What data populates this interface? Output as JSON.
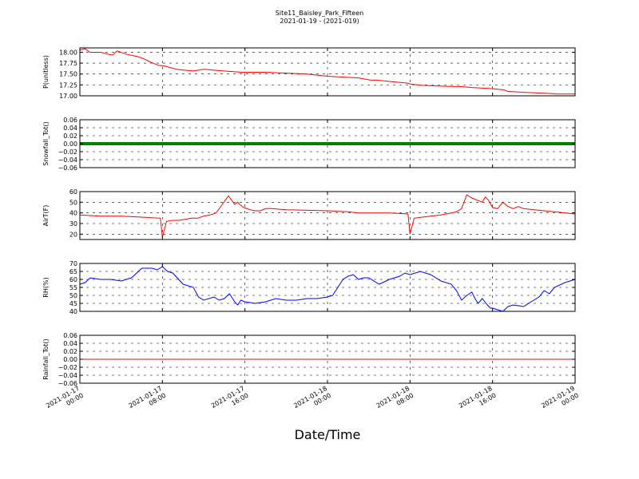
{
  "chart_data": {
    "type": "line",
    "title": "Site11_Baisley_Park_Fifteen",
    "subtitle": "2021-01-19 - (2021-019)",
    "xlabel": "Date/Time",
    "grid": true,
    "x_ticks": [
      {
        "t": 0,
        "line1": "2021-01-17",
        "line2": "00:00"
      },
      {
        "t": 8,
        "line1": "2021-01-17",
        "line2": "08:00"
      },
      {
        "t": 16,
        "line1": "2021-01-17",
        "line2": "16:00"
      },
      {
        "t": 24,
        "line1": "2021-01-18",
        "line2": "00:00"
      },
      {
        "t": 32,
        "line1": "2021-01-18",
        "line2": "08:00"
      },
      {
        "t": 40,
        "line1": "2021-01-18",
        "line2": "16:00"
      },
      {
        "t": 48,
        "line1": "2021-01-19",
        "line2": "00:00"
      }
    ],
    "xlim": [
      0,
      48
    ],
    "panels": [
      {
        "ylabel": "P(unitless)",
        "color": "#ff0000",
        "ylim": [
          17.0,
          18.1
        ],
        "yticks": [
          "17.00",
          "17.25",
          "17.50",
          "17.75",
          "18.00"
        ],
        "ytick_values": [
          17.0,
          17.25,
          17.5,
          17.75,
          18.0
        ],
        "x": [
          0,
          0.5,
          1,
          2,
          3,
          3.2,
          3.6,
          4.6,
          5.6,
          6.2,
          6.8,
          7.6,
          8.3,
          8.7,
          9.6,
          11.0,
          12.0,
          13.9,
          15.7,
          17.6,
          18.0,
          22.0,
          24.0,
          27.0,
          28.2,
          28.8,
          30.0,
          31.8,
          32.0,
          33.2,
          35.2,
          37.0,
          38.0,
          39.6,
          41.0,
          41.5,
          43.0,
          45.0,
          45.8,
          46.0,
          48.0
        ],
        "y": [
          18.05,
          18.08,
          18.0,
          18.0,
          17.94,
          17.94,
          18.03,
          17.95,
          17.9,
          17.85,
          17.78,
          17.7,
          17.68,
          17.65,
          17.6,
          17.57,
          17.61,
          17.57,
          17.54,
          17.54,
          17.54,
          17.5,
          17.45,
          17.41,
          17.36,
          17.36,
          17.33,
          17.29,
          17.27,
          17.24,
          17.22,
          17.21,
          17.19,
          17.17,
          17.14,
          17.1,
          17.08,
          17.06,
          17.05,
          17.04,
          17.04
        ]
      },
      {
        "ylabel": "Snowfall_Tot()",
        "color": "#007f00",
        "ylim": [
          -0.06,
          0.06
        ],
        "yticks": [
          "−0.06",
          "−0.04",
          "−0.02",
          "0.00",
          "0.02",
          "0.04",
          "0.06"
        ],
        "ytick_values": [
          -0.06,
          -0.04,
          -0.02,
          0.0,
          0.02,
          0.04,
          0.06
        ],
        "x": [
          0,
          48
        ],
        "y": [
          0,
          0
        ],
        "marker": "dots"
      },
      {
        "ylabel": "AirT(F)",
        "color": "#ff0000",
        "ylim": [
          15,
          60
        ],
        "yticks": [
          "20",
          "30",
          "40",
          "50",
          "60"
        ],
        "ytick_values": [
          20,
          30,
          40,
          50,
          60
        ],
        "x": [
          0,
          2,
          4,
          6,
          7.8,
          8.0,
          8.4,
          9.0,
          9.6,
          10.2,
          10.8,
          11.4,
          12.0,
          12.6,
          13.2,
          13.8,
          14.4,
          15.0,
          15.3,
          15.6,
          15.9,
          16.5,
          17.0,
          17.5,
          18.0,
          18.5,
          20.0,
          24.0,
          26.0,
          27.0,
          28.0,
          30.0,
          31.8,
          32.0,
          32.4,
          33.2,
          34.0,
          35.0,
          35.5,
          36.0,
          36.5,
          37.0,
          37.5,
          37.8,
          38.0,
          38.5,
          39.0,
          39.3,
          39.6,
          40.0,
          40.5,
          41.0,
          41.5,
          42.0,
          42.5,
          43.0,
          44.0,
          46.0,
          48.0
        ],
        "y": [
          38,
          37,
          37,
          36,
          35,
          17,
          32,
          33,
          33,
          34,
          35,
          35,
          37,
          38,
          40,
          48,
          56,
          48,
          50,
          47,
          45,
          43,
          42,
          42,
          44,
          44,
          43,
          42,
          41,
          40,
          40,
          40,
          39,
          20,
          35,
          36,
          37,
          38,
          39,
          40,
          41,
          44,
          57,
          55,
          54,
          52,
          50,
          55,
          52,
          45,
          44,
          50,
          46,
          44,
          46,
          44,
          43,
          41,
          39
        ]
      },
      {
        "ylabel": "RH(%)",
        "color": "#0000ff",
        "ylim": [
          40,
          70
        ],
        "yticks": [
          "40",
          "45",
          "50",
          "55",
          "60",
          "65",
          "70"
        ],
        "ytick_values": [
          40,
          45,
          50,
          55,
          60,
          65,
          70
        ],
        "x": [
          0,
          0.5,
          1,
          2,
          3,
          4,
          5,
          6,
          7,
          7.5,
          8,
          8.5,
          9,
          10,
          11,
          11.5,
          12,
          13,
          13.5,
          14,
          14.5,
          15,
          15.3,
          15.6,
          16,
          17,
          18,
          19,
          20,
          21,
          22,
          23,
          24,
          24.5,
          25,
          25.5,
          26,
          26.5,
          27,
          27.5,
          28,
          29,
          30,
          31,
          31.5,
          32,
          33,
          34,
          35,
          36,
          36.5,
          37,
          37.5,
          38,
          38.3,
          38.6,
          39,
          39.5,
          39.8,
          40,
          40.5,
          41,
          41.5,
          42,
          43,
          44,
          44.5,
          45,
          45.5,
          46,
          47,
          48
        ],
        "y": [
          57,
          58,
          61,
          60,
          60,
          59,
          61,
          67,
          67,
          66,
          68,
          65,
          64,
          57,
          55,
          49,
          47,
          49,
          47,
          48,
          51,
          46,
          44,
          47,
          46,
          45,
          46,
          48,
          47,
          47,
          48,
          48,
          49,
          50,
          55,
          60,
          62,
          63,
          60,
          61,
          61,
          57,
          60,
          62,
          64,
          63,
          65,
          63,
          59,
          57,
          53,
          47,
          50,
          52,
          48,
          45,
          48,
          44,
          42,
          42,
          41,
          40,
          43,
          44,
          43,
          47,
          49,
          53,
          51,
          55,
          58,
          60
        ]
      },
      {
        "ylabel": "Rainfall_Tot()",
        "color": "#ff0000",
        "ylim": [
          -0.06,
          0.06
        ],
        "yticks": [
          "−0.06",
          "−0.04",
          "−0.02",
          "0.00",
          "0.02",
          "0.04",
          "0.06"
        ],
        "ytick_values": [
          -0.06,
          -0.04,
          -0.02,
          0.0,
          0.02,
          0.04,
          0.06
        ],
        "x": [
          0,
          48
        ],
        "y": [
          0,
          0
        ]
      }
    ]
  }
}
